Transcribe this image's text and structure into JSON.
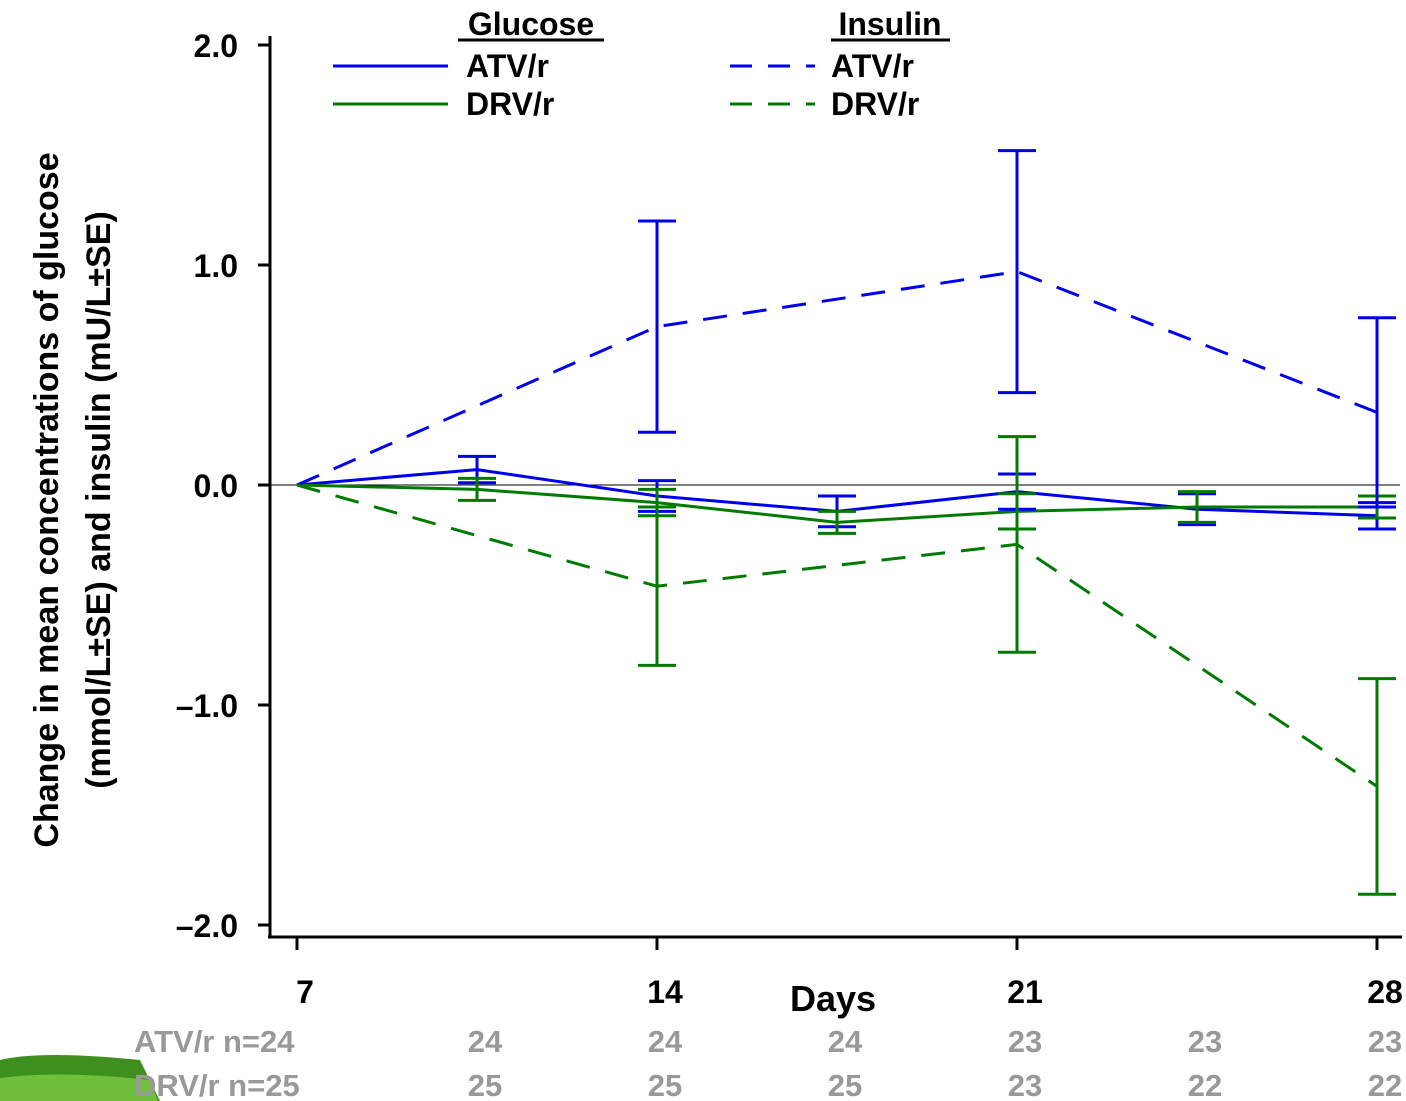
{
  "chart_data": {
    "type": "line",
    "ylabel_line1": "Change in mean concentrations of glucose",
    "ylabel_line2": "(mmol/L±SE) and insulin (mU/L±SE)",
    "xlabel": "Days",
    "ylim": [
      -2.0,
      2.0
    ],
    "yticks": [
      2.0,
      1.0,
      0.0,
      -1.0,
      -2.0
    ],
    "ytick_labels": [
      "2.0",
      "1.0",
      "0.0",
      "–1.0",
      "–2.0"
    ],
    "xlim": [
      7,
      28
    ],
    "xticks": [
      7,
      14,
      21,
      28
    ],
    "xtick_labels": [
      "7",
      "14",
      "21",
      "28"
    ],
    "x": [
      7,
      10.5,
      14,
      17.5,
      21,
      24.5,
      28
    ],
    "grid": false,
    "zero_line": true,
    "legend": {
      "placement": "top",
      "glucose_header": "Glucose",
      "insulin_header": "Insulin",
      "atv_label": "ATV/r",
      "drv_label": "DRV/r"
    },
    "series": [
      {
        "name": "Glucose ATV/r",
        "color": "#0000ee",
        "style": "solid",
        "x": [
          7,
          10.5,
          14,
          17.5,
          21,
          24.5,
          28
        ],
        "values": [
          0,
          0.07,
          -0.05,
          -0.12,
          -0.03,
          -0.11,
          -0.14
        ],
        "err": [
          null,
          0.06,
          0.07,
          0.07,
          0.08,
          0.07,
          0.06
        ]
      },
      {
        "name": "Glucose DRV/r",
        "color": "#007a00",
        "style": "solid",
        "x": [
          7,
          10.5,
          14,
          17.5,
          21,
          24.5,
          28
        ],
        "values": [
          0,
          -0.02,
          -0.08,
          -0.17,
          -0.12,
          -0.1,
          -0.1
        ],
        "err": [
          null,
          0.05,
          0.06,
          0.05,
          0.08,
          0.07,
          0.05
        ]
      },
      {
        "name": "Insulin ATV/r",
        "color": "#0000ee",
        "style": "dashed",
        "x": [
          7,
          14,
          21,
          28
        ],
        "values": [
          0,
          0.72,
          0.97,
          0.33
        ],
        "err": [
          null,
          0.48,
          0.55,
          0.43
        ]
      },
      {
        "name": "Insulin DRV/r",
        "color": "#007a00",
        "style": "dashed",
        "x": [
          7,
          14,
          21,
          28
        ],
        "values": [
          0,
          -0.46,
          -0.27,
          -1.37
        ],
        "err": [
          null,
          0.36,
          0.49,
          0.49
        ]
      }
    ],
    "n_rows": [
      {
        "label": "ATV/r n=24",
        "values": [
          "24",
          "24",
          "24",
          "23",
          "23",
          "23"
        ]
      },
      {
        "label": "DRV/r n=25",
        "values": [
          "25",
          "25",
          "25",
          "23",
          "22",
          "22"
        ]
      }
    ],
    "n_row_color": "#999999"
  }
}
